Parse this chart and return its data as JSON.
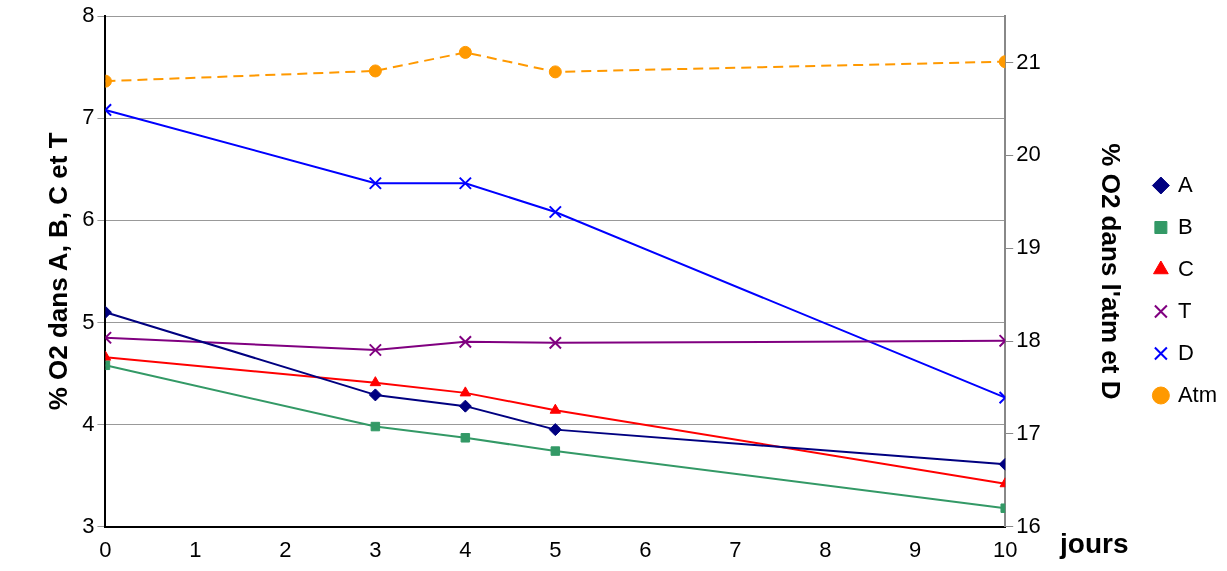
{
  "chart_data": {
    "type": "line",
    "xlabel": "jours",
    "ylabel": "% O2 dans A, B, C et T",
    "y2label": "% O2 dans l'atm et D",
    "x": [
      0,
      3,
      4,
      5,
      10
    ],
    "xlim": [
      0,
      10
    ],
    "xticks": [
      0,
      1,
      2,
      3,
      4,
      5,
      6,
      7,
      8,
      9,
      10
    ],
    "ylim": [
      3,
      8
    ],
    "yticks": [
      3,
      4,
      5,
      6,
      7,
      8
    ],
    "y2lim": [
      16,
      21.5
    ],
    "y2ticks": [
      16,
      17,
      18,
      19,
      20,
      21
    ],
    "grid": "y",
    "legend": "right",
    "series": [
      {
        "name": "A",
        "color": "#000080",
        "marker": "diamond",
        "values": [
          5.1,
          4.29,
          4.18,
          3.95,
          3.61
        ]
      },
      {
        "name": "B",
        "color": "#339966",
        "marker": "square",
        "values": [
          4.58,
          3.98,
          3.87,
          3.74,
          3.18
        ]
      },
      {
        "name": "C",
        "color": "#ff0000",
        "marker": "triangle",
        "values": [
          4.66,
          4.41,
          4.31,
          4.14,
          3.42
        ]
      },
      {
        "name": "T",
        "color": "#800080",
        "marker": "cross",
        "values": [
          4.85,
          4.73,
          4.81,
          4.8,
          4.82
        ]
      },
      {
        "name": "D",
        "color": "#0000ff",
        "marker": "cross",
        "axis": "y2",
        "values": [
          20.49,
          19.7,
          19.7,
          19.39,
          17.39
        ]
      },
      {
        "name": "Atm",
        "color": "#ff9900",
        "marker": "circle",
        "line_style": "dashed",
        "axis": "y2",
        "values": [
          20.8,
          20.91,
          21.11,
          20.9,
          21.01
        ]
      }
    ]
  }
}
